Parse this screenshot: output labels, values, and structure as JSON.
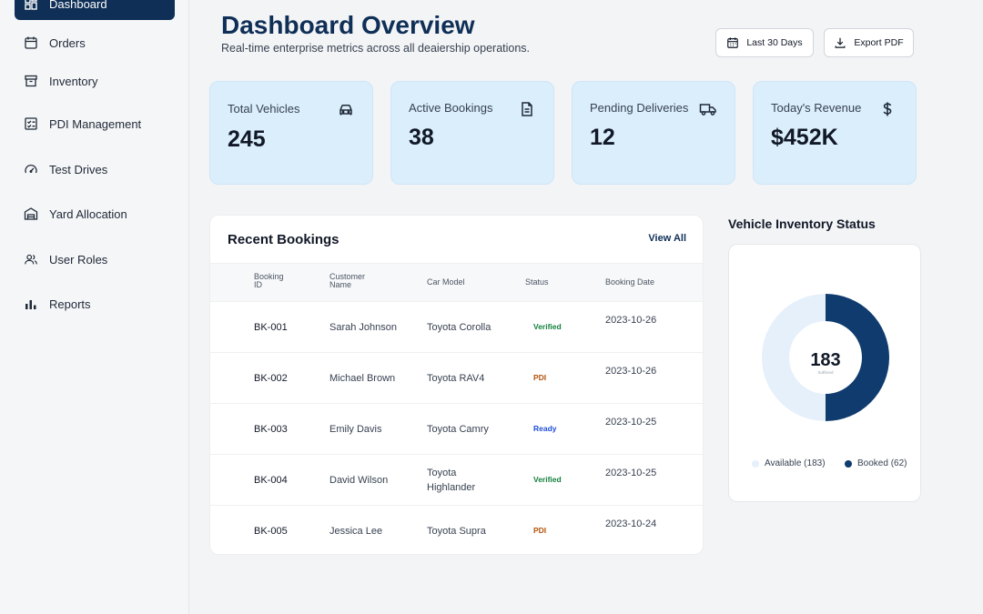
{
  "sidebar": {
    "items": [
      {
        "label": "Dashboard",
        "icon": "dashboard-icon",
        "active": true
      },
      {
        "label": "Orders",
        "icon": "calendar-icon"
      },
      {
        "label": "Inventory",
        "icon": "archive-icon"
      },
      {
        "label": "PDI Management",
        "icon": "checklist-icon"
      },
      {
        "label": "Test Drives",
        "icon": "gauge-icon"
      },
      {
        "label": "Yard Allocation",
        "icon": "garage-icon"
      },
      {
        "label": "User Roles",
        "icon": "users-icon"
      },
      {
        "label": "Reports",
        "icon": "bar-chart-icon"
      }
    ]
  },
  "header": {
    "title": "Dashboard Overview",
    "subtitle": "Real-time enterprise metrics across all deaiership operations.",
    "date_range_label": "Last 30 Days",
    "export_label": "Export PDF"
  },
  "stats": [
    {
      "label": "Total Vehicles",
      "value": "245",
      "icon": "car-icon"
    },
    {
      "label": "Active Bookings",
      "value": "38",
      "icon": "document-icon"
    },
    {
      "label": "Pending Deliveries",
      "value": "12",
      "icon": "truck-icon"
    },
    {
      "label": "Today's Revenue",
      "value": "$452K",
      "icon": "dollar-icon"
    }
  ],
  "bookings": {
    "title": "Recent Bookings",
    "view_all": "View All",
    "columns": [
      "Booking ID",
      "Customer Name",
      "Car Model",
      "Status",
      "Booking Date"
    ],
    "rows": [
      {
        "id": "BK-001",
        "customer": "Sarah Johnson",
        "car": "Toyota Corolla",
        "status": "Verified",
        "date": "2023-10-26"
      },
      {
        "id": "BK-002",
        "customer": "Michael Brown",
        "car": "Toyota RAV4",
        "status": "PDI",
        "date": "2023-10-26"
      },
      {
        "id": "BK-003",
        "customer": "Emily Davis",
        "car": "Toyota Camry",
        "status": "Ready",
        "date": "2023-10-25"
      },
      {
        "id": "BK-004",
        "customer": "David Wilson",
        "car": "Toyota Highlander",
        "status": "Verified",
        "date": "2023-10-25"
      },
      {
        "id": "BK-005",
        "customer": "Jessica Lee",
        "car": "Toyota Supra",
        "status": "PDI",
        "date": "2023-10-24"
      }
    ],
    "status_colors": {
      "Verified": "#15803d",
      "PDI": "#b45309",
      "Ready": "#1d4ed8"
    }
  },
  "inventory": {
    "title": "Vehicle Inventory Status",
    "center_value": "183",
    "center_sub": "Suffered",
    "legend": [
      {
        "label": "Available (183)",
        "color": "#e6f0fb"
      },
      {
        "label": "Booked (62)",
        "color": "#0f3b6e"
      }
    ]
  },
  "chart_data": {
    "type": "pie",
    "categories": [
      "Available",
      "Booked"
    ],
    "values": [
      183,
      62
    ],
    "title": "Vehicle Inventory Status"
  },
  "colors": {
    "primary": "#0f2f57",
    "card": "#dbeefc",
    "donut_booked": "#0f3b6e",
    "donut_available": "#e6f0fb"
  }
}
